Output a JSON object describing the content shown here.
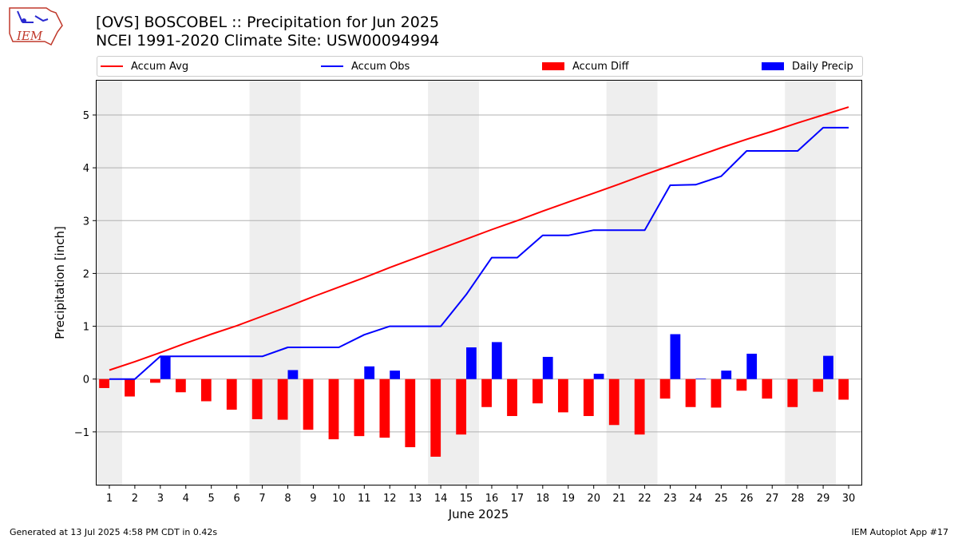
{
  "header": {
    "title_line1": "[OVS] BOSCOBEL :: Precipitation for Jun 2025",
    "title_line2": "NCEI 1991-2020 Climate Site: USW00094994",
    "logo_text": "IEM"
  },
  "footer": {
    "left": "Generated at 13 Jul 2025 4:58 PM CDT in 0.42s",
    "right": "IEM Autoplot App #17"
  },
  "colors": {
    "accum_avg": "#ff0000",
    "accum_obs": "#0000ff",
    "accum_diff": "#ff0000",
    "daily_precip": "#0000ff",
    "weekend_shade": "#eeeeee",
    "grid": "#b0b0b0"
  },
  "chart_data": {
    "type": "bar",
    "xlabel": "June 2025",
    "ylabel": "Precipitation [inch]",
    "ylim": [
      -2.0,
      5.65
    ],
    "xlim": [
      0.5,
      30.5
    ],
    "y_ticks": [
      -1,
      0,
      1,
      2,
      3,
      4,
      5
    ],
    "y_tick_labels": [
      "−1",
      "0",
      "1",
      "2",
      "3",
      "4",
      "5"
    ],
    "grid": "horizontal",
    "legend_position": "top",
    "days": [
      1,
      2,
      3,
      4,
      5,
      6,
      7,
      8,
      9,
      10,
      11,
      12,
      13,
      14,
      15,
      16,
      17,
      18,
      19,
      20,
      21,
      22,
      23,
      24,
      25,
      26,
      27,
      28,
      29,
      30
    ],
    "weekend_spans": [
      [
        0.5,
        1.5
      ],
      [
        6.5,
        8.5
      ],
      [
        13.5,
        15.5
      ],
      [
        20.5,
        22.5
      ],
      [
        27.5,
        29.5
      ]
    ],
    "series": [
      {
        "name": "Accum Avg",
        "kind": "line",
        "values": [
          0.17,
          0.33,
          0.5,
          0.68,
          0.85,
          1.01,
          1.19,
          1.37,
          1.56,
          1.74,
          1.92,
          2.11,
          2.29,
          2.47,
          2.65,
          2.83,
          3.0,
          3.18,
          3.35,
          3.52,
          3.69,
          3.87,
          4.04,
          4.21,
          4.38,
          4.54,
          4.69,
          4.85,
          5.0,
          5.15
        ]
      },
      {
        "name": "Accum Obs",
        "kind": "line",
        "values": [
          0.0,
          0.0,
          0.43,
          0.43,
          0.43,
          0.43,
          0.43,
          0.6,
          0.6,
          0.6,
          0.84,
          1.0,
          1.0,
          1.0,
          1.6,
          2.3,
          2.3,
          2.72,
          2.72,
          2.82,
          2.82,
          2.82,
          3.67,
          3.68,
          3.84,
          4.32,
          4.32,
          4.32,
          4.76,
          4.76
        ]
      },
      {
        "name": "Accum Diff",
        "kind": "bar",
        "values": [
          -0.17,
          -0.33,
          -0.07,
          -0.25,
          -0.42,
          -0.58,
          -0.76,
          -0.77,
          -0.96,
          -1.14,
          -1.08,
          -1.11,
          -1.29,
          -1.47,
          -1.05,
          -0.53,
          -0.7,
          -0.46,
          -0.63,
          -0.7,
          -0.87,
          -1.05,
          -0.37,
          -0.53,
          -0.54,
          -0.22,
          -0.37,
          -0.53,
          -0.24,
          -0.39
        ]
      },
      {
        "name": "Daily Precip",
        "kind": "bar",
        "values": [
          0.0,
          0.0,
          0.43,
          0.0,
          0.0,
          0.0,
          0.0,
          0.17,
          0.0,
          0.0,
          0.24,
          0.16,
          0.0,
          0.0,
          0.6,
          0.7,
          0.0,
          0.42,
          0.0,
          0.1,
          0.0,
          0.0,
          0.85,
          0.01,
          0.16,
          0.48,
          0.0,
          0.0,
          0.44,
          0.0
        ]
      }
    ]
  }
}
